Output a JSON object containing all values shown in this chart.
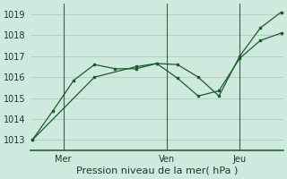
{
  "xlabel": "Pression niveau de la mer( hPa )",
  "background_color": "#ceeade",
  "grid_color": "#b0ccbc",
  "line_color": "#1a5c28",
  "ylim": [
    1012.5,
    1019.5
  ],
  "yticks": [
    1013,
    1014,
    1015,
    1016,
    1017,
    1018,
    1019
  ],
  "xlim": [
    -0.1,
    12.1
  ],
  "series1_x": [
    0,
    1,
    2,
    3,
    4,
    5,
    6,
    7,
    8,
    9,
    10,
    11,
    12
  ],
  "series1_y": [
    1013.0,
    1014.4,
    1015.85,
    1016.6,
    1016.4,
    1016.4,
    1016.65,
    1015.95,
    1015.1,
    1015.35,
    1016.9,
    1017.75,
    1018.1
  ],
  "series2_x": [
    0,
    3,
    5,
    6,
    7,
    8,
    9,
    10,
    11,
    12
  ],
  "series2_y": [
    1013.0,
    1016.0,
    1016.5,
    1016.65,
    1016.6,
    1016.0,
    1015.1,
    1017.0,
    1018.35,
    1019.1
  ],
  "vline_positions": [
    1.5,
    6.5,
    10.0
  ],
  "xtick_positions": [
    1.5,
    6.5,
    10.0
  ],
  "xtick_labels": [
    "Mer",
    "Ven",
    "Jeu"
  ],
  "xlabel_fontsize": 8,
  "tick_fontsize": 7,
  "spine_color": "#2a6040"
}
